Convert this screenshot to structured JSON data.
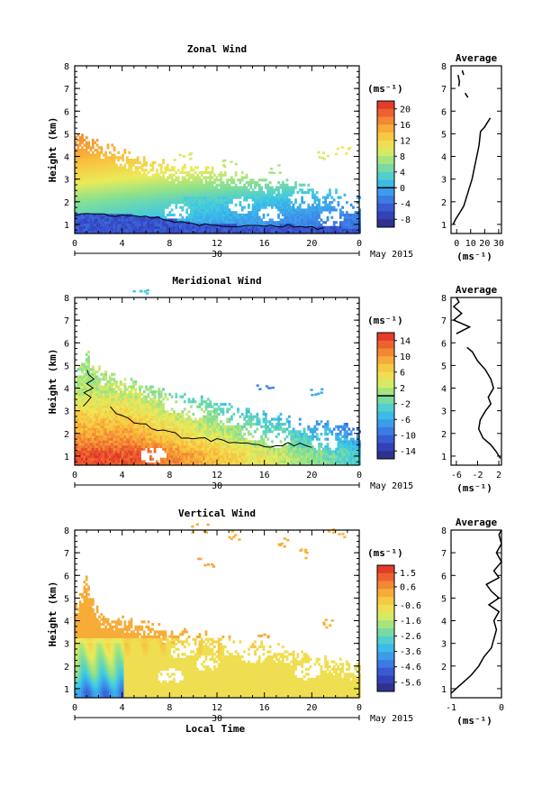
{
  "chart_data": [
    {
      "type": "heatmap",
      "title": "Zonal Wind",
      "ylabel": "Height (km)",
      "xlabel": "",
      "x_ticks": [
        "0",
        "4",
        "8",
        "12",
        "16",
        "20",
        "0"
      ],
      "y_ticks": [
        "1",
        "2",
        "3",
        "4",
        "5",
        "6",
        "7",
        "8"
      ],
      "xlim": [
        0,
        24
      ],
      "ylim": [
        0.6,
        8.0
      ],
      "date_day": "30",
      "date_month": "May 2015",
      "colorbar": {
        "unit": "(ms⁻¹)",
        "ticks": [
          "20",
          "16",
          "12",
          "8",
          "4",
          "0",
          "-4",
          "-8"
        ],
        "range": [
          -10,
          22
        ],
        "zero_line": 0
      },
      "field": {
        "top_boundary": [
          [
            0,
            4.9
          ],
          [
            1.5,
            4.7
          ],
          [
            3,
            4.4
          ],
          [
            5,
            4.0
          ],
          [
            7,
            3.7
          ],
          [
            9,
            3.5
          ],
          [
            12,
            3.3
          ],
          [
            15,
            3.0
          ],
          [
            18,
            2.8
          ],
          [
            21,
            2.4
          ],
          [
            24,
            2.2
          ]
        ],
        "negative_top": [
          [
            0,
            1.45
          ],
          [
            3,
            1.4
          ],
          [
            6,
            1.35
          ],
          [
            8,
            1.2
          ],
          [
            10,
            1.0
          ],
          [
            12,
            0.95
          ],
          [
            16,
            0.9
          ],
          [
            18,
            0.95
          ],
          [
            20,
            0.85
          ],
          [
            24,
            0.8
          ]
        ],
        "gradient_stops": [
          [
            1.0,
            3
          ],
          [
            2.0,
            6
          ],
          [
            3.0,
            11
          ],
          [
            4.0,
            15
          ],
          [
            5.0,
            17
          ]
        ],
        "scattered": [
          [
            21,
            4.0,
            9
          ],
          [
            22.5,
            4.2,
            10
          ],
          [
            13,
            3.6,
            8
          ],
          [
            17,
            3.4,
            7
          ],
          [
            9,
            3.9,
            9
          ]
        ],
        "gaps": [
          [
            14,
            1.8
          ],
          [
            16.5,
            1.4
          ],
          [
            19,
            2.0
          ],
          [
            21.5,
            1.2
          ],
          [
            23,
            1.8
          ],
          [
            8.5,
            1.5
          ]
        ]
      },
      "profile": {
        "title": "Average",
        "x_ticks": [
          "0",
          "10",
          "20",
          "30"
        ],
        "xlim": [
          -4,
          32
        ],
        "xlabel": "(ms⁻¹)",
        "points": [
          [
            -2.5,
            1.0
          ],
          [
            -1,
            1.2
          ],
          [
            1,
            1.4
          ],
          [
            3,
            1.6
          ],
          [
            5,
            1.8
          ],
          [
            6,
            2.0
          ],
          [
            7,
            2.2
          ],
          [
            8,
            2.4
          ],
          [
            9,
            2.6
          ],
          [
            10,
            2.8
          ],
          [
            11,
            3.0
          ],
          [
            12,
            3.3
          ],
          [
            13,
            3.6
          ],
          [
            14,
            3.9
          ],
          [
            15,
            4.2
          ],
          [
            16,
            4.5
          ],
          [
            16.5,
            4.8
          ],
          [
            17,
            5.1
          ],
          [
            18.5,
            5.2
          ],
          [
            20,
            5.3
          ],
          [
            22,
            5.5
          ],
          [
            24,
            5.7
          ]
        ],
        "upper_segments": [
          [
            [
              1,
              7.6
            ],
            [
              2,
              7.3
            ],
            [
              1.5,
              7.1
            ]
          ],
          [
            [
              4,
              7.8
            ],
            [
              5,
              7.6
            ]
          ],
          [
            [
              6,
              6.8
            ],
            [
              8,
              6.6
            ]
          ]
        ]
      }
    },
    {
      "type": "heatmap",
      "title": "Meridional Wind",
      "ylabel": "Height (km)",
      "xlabel": "",
      "x_ticks": [
        "0",
        "4",
        "8",
        "12",
        "16",
        "20",
        "0"
      ],
      "y_ticks": [
        "1",
        "2",
        "3",
        "4",
        "5",
        "6",
        "7",
        "8"
      ],
      "xlim": [
        0,
        24
      ],
      "ylim": [
        0.6,
        8.0
      ],
      "date_day": "30",
      "date_month": "May 2015",
      "colorbar": {
        "unit": "(ms⁻¹)",
        "ticks": [
          "14",
          "10",
          "6",
          "2",
          "-2",
          "-6",
          "-10",
          "-14"
        ],
        "range": [
          -16,
          16
        ],
        "zero_line": 0
      },
      "field": {
        "top_boundary": [
          [
            0,
            4.5
          ],
          [
            1,
            5.6
          ],
          [
            2,
            4.9
          ],
          [
            3,
            4.5
          ],
          [
            5,
            4.2
          ],
          [
            7,
            3.9
          ],
          [
            9,
            3.6
          ],
          [
            12,
            3.4
          ],
          [
            14,
            3.0
          ],
          [
            17,
            2.8
          ],
          [
            20,
            2.5
          ],
          [
            24,
            2.2
          ]
        ],
        "neg_start_x": 4.5,
        "gradient_stops": [
          [
            1.0,
            14
          ],
          [
            1.8,
            10
          ],
          [
            2.8,
            6
          ],
          [
            3.8,
            2
          ],
          [
            4.8,
            1
          ]
        ],
        "scattered": [
          [
            16,
            4.1,
            -8
          ],
          [
            20.5,
            3.8,
            -6
          ],
          [
            5.5,
            8.1,
            -4
          ]
        ],
        "gaps": [
          [
            8.5,
            3.2
          ],
          [
            10,
            2.9
          ],
          [
            13,
            2.6
          ],
          [
            15,
            2.0
          ],
          [
            17,
            1.7
          ],
          [
            19,
            2.4
          ],
          [
            21,
            1.5
          ],
          [
            6.5,
            1.0
          ]
        ]
      },
      "profile": {
        "title": "Average",
        "x_ticks": [
          "-6",
          "-2",
          "2"
        ],
        "xlim": [
          -7,
          2.5
        ],
        "xlabel": "(ms⁻¹)",
        "points": [
          [
            2.3,
            0.9
          ],
          [
            1.5,
            1.2
          ],
          [
            0.5,
            1.5
          ],
          [
            -1,
            1.8
          ],
          [
            -1.8,
            2.2
          ],
          [
            -1.5,
            2.6
          ],
          [
            -0.5,
            3.0
          ],
          [
            0.5,
            3.3
          ],
          [
            0,
            3.6
          ],
          [
            1,
            4.0
          ],
          [
            0.5,
            4.4
          ],
          [
            -0.5,
            4.8
          ],
          [
            -2,
            5.2
          ],
          [
            -3,
            5.6
          ],
          [
            -4,
            5.8
          ]
        ],
        "upper_segments": [
          [
            [
              -6,
              6.4
            ],
            [
              -3.5,
              6.7
            ],
            [
              -6.5,
              7.0
            ],
            [
              -5,
              7.3
            ],
            [
              -6.5,
              7.6
            ],
            [
              -5.5,
              7.8
            ],
            [
              -6,
              8.0
            ]
          ]
        ]
      }
    },
    {
      "type": "heatmap",
      "title": "Vertical Wind",
      "ylabel": "Height (km)",
      "xlabel": "Local Time",
      "x_ticks": [
        "0",
        "4",
        "8",
        "12",
        "16",
        "20",
        "0"
      ],
      "y_ticks": [
        "1",
        "2",
        "3",
        "4",
        "5",
        "6",
        "7",
        "8"
      ],
      "xlim": [
        0,
        24
      ],
      "ylim": [
        0.6,
        8.0
      ],
      "date_day": "30",
      "date_month": "May 2015",
      "colorbar": {
        "unit": "(ms⁻¹)",
        "ticks": [
          "1.5",
          "0.6",
          "-0.6",
          "-1.6",
          "-2.6",
          "-3.6",
          "-4.6",
          "-5.6"
        ],
        "range": [
          -6.2,
          2.0
        ],
        "zero_line": null
      },
      "field": {
        "top_boundary": [
          [
            0,
            4.5
          ],
          [
            1,
            5.8
          ],
          [
            2,
            4.3
          ],
          [
            4,
            4.0
          ],
          [
            6,
            3.8
          ],
          [
            8,
            3.6
          ],
          [
            10,
            3.4
          ],
          [
            12,
            3.2
          ],
          [
            14,
            3.0
          ],
          [
            16,
            2.9
          ],
          [
            18,
            2.7
          ],
          [
            20,
            2.4
          ],
          [
            24,
            2.0
          ]
        ],
        "gradient_stops": [
          [
            0.8,
            -4.2
          ],
          [
            1.6,
            -2.6
          ],
          [
            2.6,
            -1.4
          ],
          [
            3.6,
            -0.6
          ],
          [
            4.6,
            -0.3
          ]
        ],
        "scattered": [
          [
            10.5,
            8.0,
            0.2
          ],
          [
            13.5,
            7.7,
            0.1
          ],
          [
            17.5,
            7.4,
            0.2
          ],
          [
            19,
            6.9,
            0.1
          ],
          [
            11,
            6.5,
            0.3
          ],
          [
            21,
            3.8,
            0.1
          ],
          [
            16,
            3.2,
            0.2
          ],
          [
            8,
            3.1,
            0.1
          ],
          [
            22,
            7.8,
            0.1
          ]
        ],
        "gaps": [
          [
            9,
            2.6
          ],
          [
            11,
            2.1
          ],
          [
            13.5,
            2.8
          ],
          [
            15,
            2.4
          ],
          [
            17,
            2.9
          ],
          [
            19.5,
            1.7
          ],
          [
            8,
            1.5
          ]
        ]
      },
      "profile": {
        "title": "Average",
        "x_ticks": [
          "-1",
          "0"
        ],
        "xlim": [
          -1,
          0
        ],
        "xlabel": "(ms⁻¹)",
        "points": [
          [
            -1,
            0.8
          ],
          [
            -0.8,
            1.2
          ],
          [
            -0.6,
            1.6
          ],
          [
            -0.45,
            2.0
          ],
          [
            -0.35,
            2.4
          ],
          [
            -0.2,
            2.8
          ],
          [
            -0.15,
            3.2
          ],
          [
            -0.1,
            3.6
          ],
          [
            -0.15,
            4.0
          ],
          [
            -0.05,
            4.4
          ],
          [
            -0.25,
            4.7
          ],
          [
            -0.05,
            5.0
          ],
          [
            -0.2,
            5.3
          ],
          [
            -0.3,
            5.6
          ],
          [
            -0.05,
            5.9
          ],
          [
            -0.15,
            6.2
          ],
          [
            0,
            6.6
          ],
          [
            -0.1,
            7.0
          ],
          [
            0,
            7.4
          ],
          [
            -0.05,
            7.8
          ],
          [
            0,
            8.0
          ]
        ],
        "upper_segments": []
      }
    }
  ]
}
